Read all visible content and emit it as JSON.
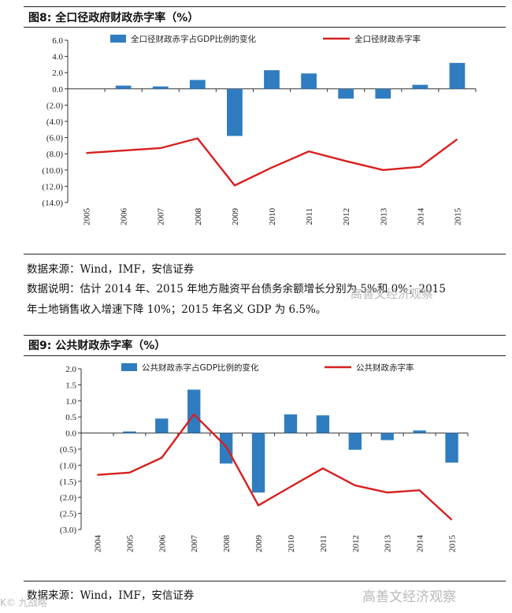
{
  "figure1": {
    "title": "图8:  全口径政府财政赤字率（%）",
    "source": "数据来源：Wind，IMF，安信证券",
    "note_line1": "数据说明：估计 2014 年、2015 年地方融资平台债务余额增长分别为 5%和 0%；2015",
    "note_line2": "年土地销售收入增速下降 10%；2015 年名义 GDP 为 6.5%。"
  },
  "figure2": {
    "title": "图9:   公共财政赤字率（%）",
    "source": "数据来源：Wind，IMF，安信证券"
  },
  "watermark": {
    "text1": "高善文经济观察",
    "text2": "高善文经济观察",
    "corner": "K© 九战略"
  },
  "colors": {
    "bar": "#2f7dc0",
    "line": "#d6201f"
  },
  "chart_data": [
    {
      "type": "bar+line",
      "title": "全口径政府财政赤字率（%）",
      "categories": [
        "2005",
        "2006",
        "2007",
        "2008",
        "2009",
        "2010",
        "2011",
        "2012",
        "2013",
        "2014",
        "2015"
      ],
      "ylim": [
        -14,
        6
      ],
      "yticks": [
        6,
        4,
        2,
        0,
        -2,
        -4,
        -6,
        -8,
        -10,
        -12,
        -14
      ],
      "ytick_labels": [
        "6.0",
        "4.0",
        "2.0",
        "0.0",
        "(2.0)",
        "(4.0)",
        "(6.0)",
        "(8.0)",
        "(10.0)",
        "(12.0)",
        "(14.0)"
      ],
      "series": [
        {
          "name": "全口径财政赤字占GDP比例的变化",
          "kind": "bar",
          "values": [
            0,
            0.4,
            0.3,
            1.1,
            -5.8,
            2.3,
            1.9,
            -1.2,
            -1.2,
            0.5,
            3.2
          ]
        },
        {
          "name": "全口径财政赤字率",
          "kind": "line",
          "values": [
            -7.9,
            -7.6,
            -7.3,
            -6.1,
            -11.9,
            -9.7,
            -7.7,
            -8.9,
            -10.0,
            -9.6,
            -6.2
          ]
        }
      ]
    },
    {
      "type": "bar+line",
      "title": "公共财政赤字率（%）",
      "categories": [
        "2004",
        "2005",
        "2006",
        "2007",
        "2008",
        "2009",
        "2010",
        "2011",
        "2012",
        "2013",
        "2014",
        "2015"
      ],
      "ylim": [
        -3,
        2
      ],
      "yticks": [
        2,
        1.5,
        1,
        0.5,
        0,
        -0.5,
        -1,
        -1.5,
        -2,
        -2.5,
        -3
      ],
      "ytick_labels": [
        "2.0",
        "1.5",
        "1.0",
        "0.5",
        "0.0",
        "(0.5)",
        "(1.0)",
        "(1.5)",
        "(2.0)",
        "(2.5)",
        "(3.0)"
      ],
      "series": [
        {
          "name": "公共财政赤字占GDP比例的变化",
          "kind": "bar",
          "values": [
            0,
            0.05,
            0.45,
            1.35,
            -0.95,
            -1.85,
            0.58,
            0.55,
            -0.52,
            -0.22,
            0.08,
            -0.92
          ]
        },
        {
          "name": "公共财政赤字率",
          "kind": "line",
          "values": [
            -1.3,
            -1.23,
            -0.77,
            0.58,
            -0.42,
            -2.25,
            -1.67,
            -1.1,
            -1.63,
            -1.85,
            -1.78,
            -2.7
          ]
        }
      ]
    }
  ]
}
